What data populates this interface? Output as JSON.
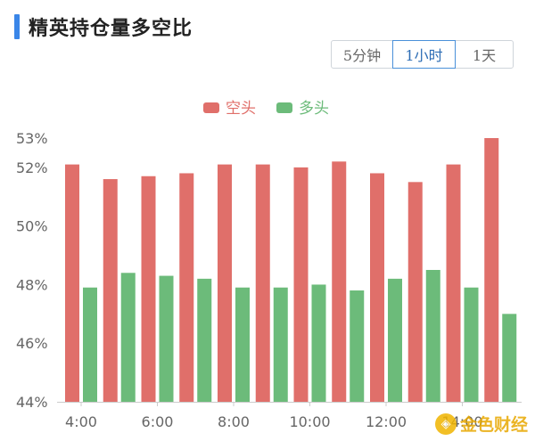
{
  "header": {
    "title": "精英持仓量多空比"
  },
  "tabs": [
    {
      "label": "5分钟",
      "active": false
    },
    {
      "label": "1小时",
      "active": true
    },
    {
      "label": "1天",
      "active": false
    }
  ],
  "colors": {
    "short": "#e06f6a",
    "long": "#6cbb7a",
    "accent": "#3a86e8"
  },
  "watermark": {
    "text": "金色财经"
  },
  "chart_data": {
    "type": "bar",
    "legend_position": "top-center",
    "grid": false,
    "y_ticks": [
      "53%",
      "52%",
      "50%",
      "48%",
      "46%",
      "44%"
    ],
    "y_tick_values": [
      53,
      52,
      50,
      48,
      46,
      44
    ],
    "x_tick_labels": [
      "4:00",
      "6:00",
      "8:00",
      "10:00",
      "12:00",
      "14:00"
    ],
    "ylim": [
      44,
      53
    ],
    "series": [
      {
        "name": "空头",
        "color": "#e06f6a",
        "values": [
          52.1,
          51.6,
          51.7,
          51.8,
          52.1,
          52.1,
          52.0,
          52.2,
          51.8,
          51.5,
          52.1,
          53.0
        ]
      },
      {
        "name": "多头",
        "color": "#6cbb7a",
        "values": [
          47.9,
          48.4,
          48.3,
          48.2,
          47.9,
          47.9,
          48.0,
          47.8,
          48.2,
          48.5,
          47.9,
          47.0
        ]
      }
    ]
  }
}
